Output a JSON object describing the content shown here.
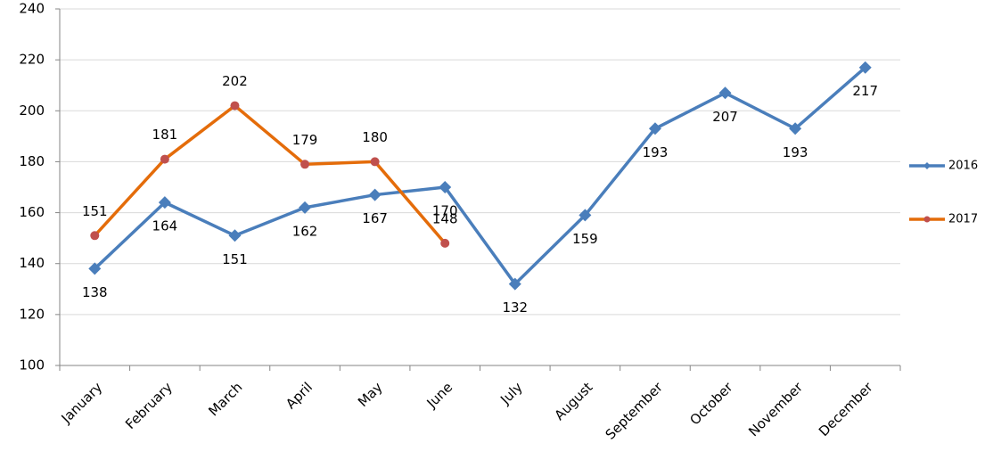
{
  "chart_data": {
    "type": "line",
    "categories": [
      "January",
      "February",
      "March",
      "April",
      "May",
      "June",
      "July",
      "August",
      "September",
      "October",
      "November",
      "December"
    ],
    "series": [
      {
        "name": "2016",
        "color": "#4a7ebb",
        "marker": "diamond",
        "marker_color": "#4a7ebb",
        "values": [
          138,
          164,
          151,
          162,
          167,
          170,
          132,
          159,
          193,
          207,
          193,
          217
        ]
      },
      {
        "name": "2017",
        "color": "#e46c0a",
        "marker": "circle",
        "marker_color": "#c0504d",
        "values": [
          151,
          181,
          202,
          179,
          180,
          148,
          null,
          null,
          null,
          null,
          null,
          null
        ]
      }
    ],
    "ylim": [
      100,
      240
    ],
    "yticks": [
      100,
      120,
      140,
      160,
      180,
      200,
      220,
      240
    ],
    "grid": true,
    "legend": "right"
  }
}
